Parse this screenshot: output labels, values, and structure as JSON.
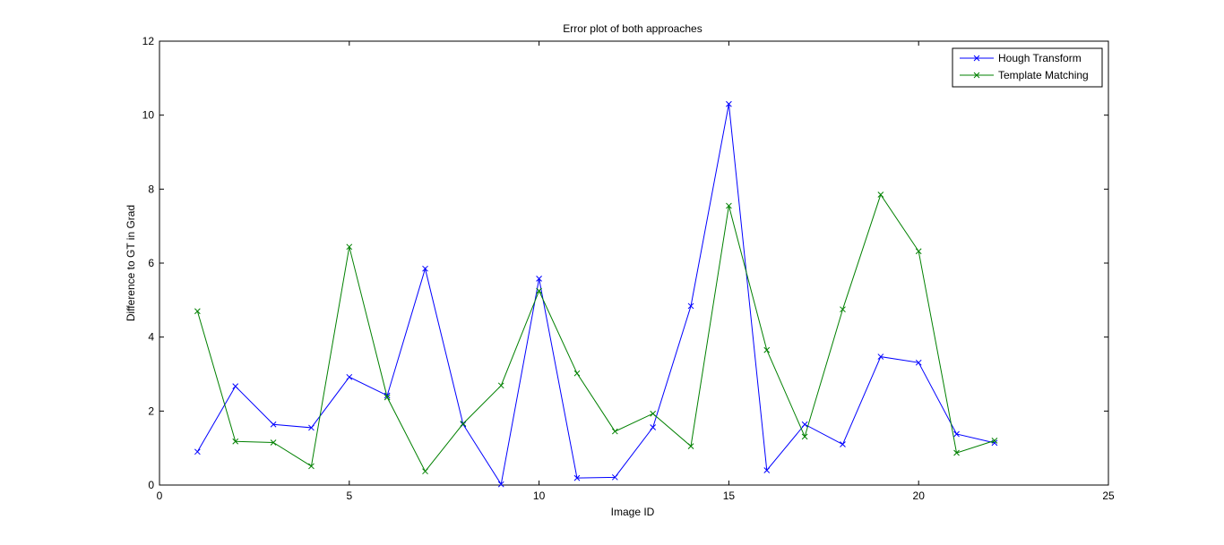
{
  "chart_data": {
    "type": "line",
    "title": "Error plot of both approaches",
    "xlabel": "Image ID",
    "ylabel": "Difference to GT in Grad",
    "xlim": [
      0,
      25
    ],
    "ylim": [
      0,
      12
    ],
    "xticks": [
      0,
      5,
      10,
      15,
      20,
      25
    ],
    "yticks": [
      0,
      2,
      4,
      6,
      8,
      10,
      12
    ],
    "grid": false,
    "legend_position": "top-right",
    "marker": "x",
    "x": [
      1,
      2,
      3,
      4,
      5,
      6,
      7,
      8,
      9,
      10,
      11,
      12,
      13,
      14,
      15,
      16,
      17,
      18,
      19,
      20,
      21,
      22
    ],
    "series": [
      {
        "name": "Hough Transform",
        "color": "#0000ff",
        "values": [
          0.9,
          2.67,
          1.64,
          1.55,
          2.92,
          2.42,
          5.85,
          1.64,
          0.02,
          5.58,
          0.19,
          0.21,
          1.56,
          4.84,
          10.3,
          0.4,
          1.64,
          1.1,
          3.47,
          3.31,
          1.38,
          1.14
        ]
      },
      {
        "name": "Template Matching",
        "color": "#008000",
        "values": [
          4.7,
          1.18,
          1.15,
          0.51,
          6.44,
          2.37,
          0.37,
          1.66,
          2.69,
          5.25,
          3.02,
          1.45,
          1.93,
          1.05,
          7.55,
          3.65,
          1.31,
          4.75,
          7.85,
          6.32,
          0.87,
          1.2
        ]
      }
    ]
  }
}
